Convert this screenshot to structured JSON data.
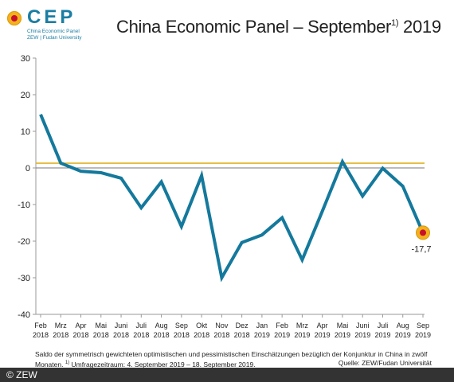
{
  "logo": {
    "word": "CEP",
    "line1": "China Economic Panel",
    "line2": "ZEW | Fudan University"
  },
  "header": {
    "title": "China Economic Panel – September",
    "title_sup": "1)",
    "title_year": "2019"
  },
  "chart_data": {
    "type": "line",
    "categories": [
      [
        "Feb",
        "2018"
      ],
      [
        "Mrz",
        "2018"
      ],
      [
        "Apr",
        "2018"
      ],
      [
        "Mai",
        "2018"
      ],
      [
        "Juni",
        "2018"
      ],
      [
        "Juli",
        "2018"
      ],
      [
        "Aug",
        "2018"
      ],
      [
        "Sep",
        "2018"
      ],
      [
        "Okt",
        "2018"
      ],
      [
        "Nov",
        "2018"
      ],
      [
        "Dez",
        "2018"
      ],
      [
        "Jan",
        "2019"
      ],
      [
        "Feb",
        "2019"
      ],
      [
        "Mrz",
        "2019"
      ],
      [
        "Apr",
        "2019"
      ],
      [
        "Mai",
        "2019"
      ],
      [
        "Juni",
        "2019"
      ],
      [
        "Juli",
        "2019"
      ],
      [
        "Aug",
        "2019"
      ],
      [
        "Sep",
        "2019"
      ]
    ],
    "values": [
      14.6,
      1.3,
      -0.9,
      -1.3,
      -2.8,
      -10.9,
      -3.8,
      -16.0,
      -2.1,
      -30.0,
      -20.4,
      -18.3,
      -13.6,
      -25.1,
      -11.8,
      1.7,
      -7.7,
      -0.1,
      -5.0,
      -17.7
    ],
    "reference_line": 1.3,
    "ylim": [
      -40,
      30
    ],
    "yticks": [
      30,
      20,
      10,
      0,
      -10,
      -20,
      -30,
      -40
    ],
    "last_label": "-17,7",
    "colors": {
      "line": "#14799c",
      "reference": "#e2b224",
      "marker_outer": "#f2b21c",
      "marker_inner": "#c8102e"
    }
  },
  "note": {
    "text": "Saldo der symmetrisch gewichteten optimistischen und pessimistischen Einschätzungen bezüglich der Konjunktur in China in zwölf Monaten.",
    "footnote_mark": "1)",
    "footnote": "Umfragezeitraum: 4. September 2019 – 18. September 2019.",
    "source": "Quelle: ZEW/Fudan Universität"
  },
  "footer": {
    "copyright": "© ZEW"
  }
}
